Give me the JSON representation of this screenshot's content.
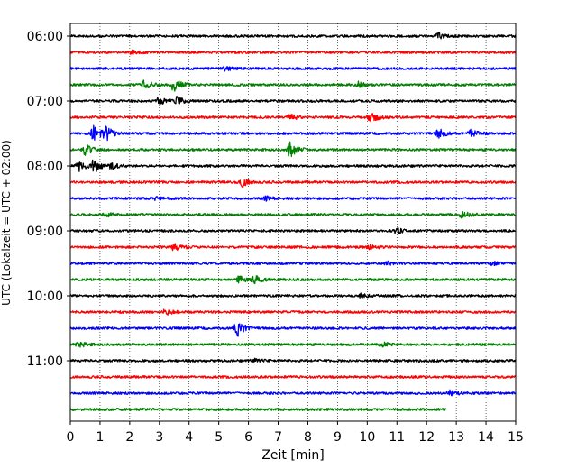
{
  "chart_data": {
    "type": "line",
    "xlabel": "Zeit  [min]",
    "ylabel": "UTC (Lokalzeit = UTC + 02:00)",
    "xlim": [
      0,
      15
    ],
    "x_ticks": [
      0,
      1,
      2,
      3,
      4,
      5,
      6,
      7,
      8,
      9,
      10,
      11,
      12,
      13,
      14,
      15
    ],
    "x_tick_labels": [
      "0",
      "1",
      "2",
      "3",
      "4",
      "5",
      "6",
      "7",
      "8",
      "9",
      "10",
      "11",
      "12",
      "13",
      "14",
      "15"
    ],
    "y_tick_labels": [
      "06:00",
      "07:00",
      "08:00",
      "09:00",
      "10:00",
      "11:00"
    ],
    "grid": "vertical dotted at each minute",
    "trace_interval_min": 15,
    "colors": [
      "#000000",
      "#ff0000",
      "#0000ff",
      "#008000"
    ],
    "series": [
      {
        "start": "06:00",
        "color": "#000000",
        "end_min": 15,
        "events": [
          {
            "t": 12.4,
            "amp": 3
          }
        ]
      },
      {
        "start": "06:15",
        "color": "#ff0000",
        "end_min": 15,
        "events": [
          {
            "t": 2.1,
            "amp": 2
          }
        ]
      },
      {
        "start": "06:30",
        "color": "#0000ff",
        "end_min": 15,
        "events": [
          {
            "t": 5.2,
            "amp": 2
          }
        ]
      },
      {
        "start": "06:45",
        "color": "#008000",
        "end_min": 15,
        "events": [
          {
            "t": 2.5,
            "amp": 5
          },
          {
            "t": 3.5,
            "amp": 8
          },
          {
            "t": 9.7,
            "amp": 3
          }
        ]
      },
      {
        "start": "07:00",
        "color": "#000000",
        "end_min": 15,
        "events": [
          {
            "t": 3.0,
            "amp": 5
          },
          {
            "t": 3.6,
            "amp": 5
          }
        ]
      },
      {
        "start": "07:15",
        "color": "#ff0000",
        "end_min": 15,
        "events": [
          {
            "t": 7.4,
            "amp": 3
          },
          {
            "t": 10.1,
            "amp": 6
          }
        ]
      },
      {
        "start": "07:30",
        "color": "#0000ff",
        "end_min": 15,
        "events": [
          {
            "t": 0.8,
            "amp": 9
          },
          {
            "t": 1.2,
            "amp": 7
          },
          {
            "t": 12.4,
            "amp": 5
          },
          {
            "t": 13.5,
            "amp": 4
          }
        ]
      },
      {
        "start": "07:45",
        "color": "#008000",
        "end_min": 15,
        "events": [
          {
            "t": 0.5,
            "amp": 6
          },
          {
            "t": 7.4,
            "amp": 9
          }
        ]
      },
      {
        "start": "08:00",
        "color": "#000000",
        "end_min": 15,
        "events": [
          {
            "t": 0.3,
            "amp": 6
          },
          {
            "t": 0.8,
            "amp": 7
          },
          {
            "t": 1.4,
            "amp": 4
          }
        ]
      },
      {
        "start": "08:15",
        "color": "#ff0000",
        "end_min": 15,
        "events": [
          {
            "t": 5.8,
            "amp": 5
          }
        ]
      },
      {
        "start": "08:30",
        "color": "#0000ff",
        "end_min": 15,
        "events": [
          {
            "t": 2.9,
            "amp": 2
          },
          {
            "t": 6.6,
            "amp": 2
          }
        ]
      },
      {
        "start": "08:45",
        "color": "#008000",
        "end_min": 15,
        "events": [
          {
            "t": 1.2,
            "amp": 2
          },
          {
            "t": 13.2,
            "amp": 4
          }
        ]
      },
      {
        "start": "09:00",
        "color": "#000000",
        "end_min": 15,
        "events": [
          {
            "t": 11.0,
            "amp": 3
          }
        ]
      },
      {
        "start": "09:15",
        "color": "#ff0000",
        "end_min": 15,
        "events": [
          {
            "t": 3.5,
            "amp": 5
          },
          {
            "t": 10.1,
            "amp": 2
          }
        ]
      },
      {
        "start": "09:30",
        "color": "#0000ff",
        "end_min": 15,
        "events": [
          {
            "t": 10.7,
            "amp": 2
          },
          {
            "t": 14.2,
            "amp": 2
          }
        ]
      },
      {
        "start": "09:45",
        "color": "#008000",
        "end_min": 15,
        "events": [
          {
            "t": 5.7,
            "amp": 4
          },
          {
            "t": 6.2,
            "amp": 4
          }
        ]
      },
      {
        "start": "10:00",
        "color": "#000000",
        "end_min": 15,
        "events": [
          {
            "t": 9.8,
            "amp": 2
          }
        ]
      },
      {
        "start": "10:15",
        "color": "#ff0000",
        "end_min": 15,
        "events": [
          {
            "t": 3.2,
            "amp": 3
          }
        ]
      },
      {
        "start": "10:30",
        "color": "#0000ff",
        "end_min": 15,
        "events": [
          {
            "t": 5.6,
            "amp": 10
          }
        ]
      },
      {
        "start": "10:45",
        "color": "#008000",
        "end_min": 15,
        "events": [
          {
            "t": 0.3,
            "amp": 3
          },
          {
            "t": 10.5,
            "amp": 3
          }
        ]
      },
      {
        "start": "11:00",
        "color": "#000000",
        "end_min": 15,
        "events": [
          {
            "t": 6.2,
            "amp": 2
          }
        ]
      },
      {
        "start": "11:15",
        "color": "#ff0000",
        "end_min": 15,
        "events": []
      },
      {
        "start": "11:30",
        "color": "#0000ff",
        "end_min": 15,
        "events": [
          {
            "t": 12.8,
            "amp": 3
          }
        ]
      },
      {
        "start": "11:45",
        "color": "#008000",
        "end_min": 12.65,
        "events": []
      }
    ]
  }
}
